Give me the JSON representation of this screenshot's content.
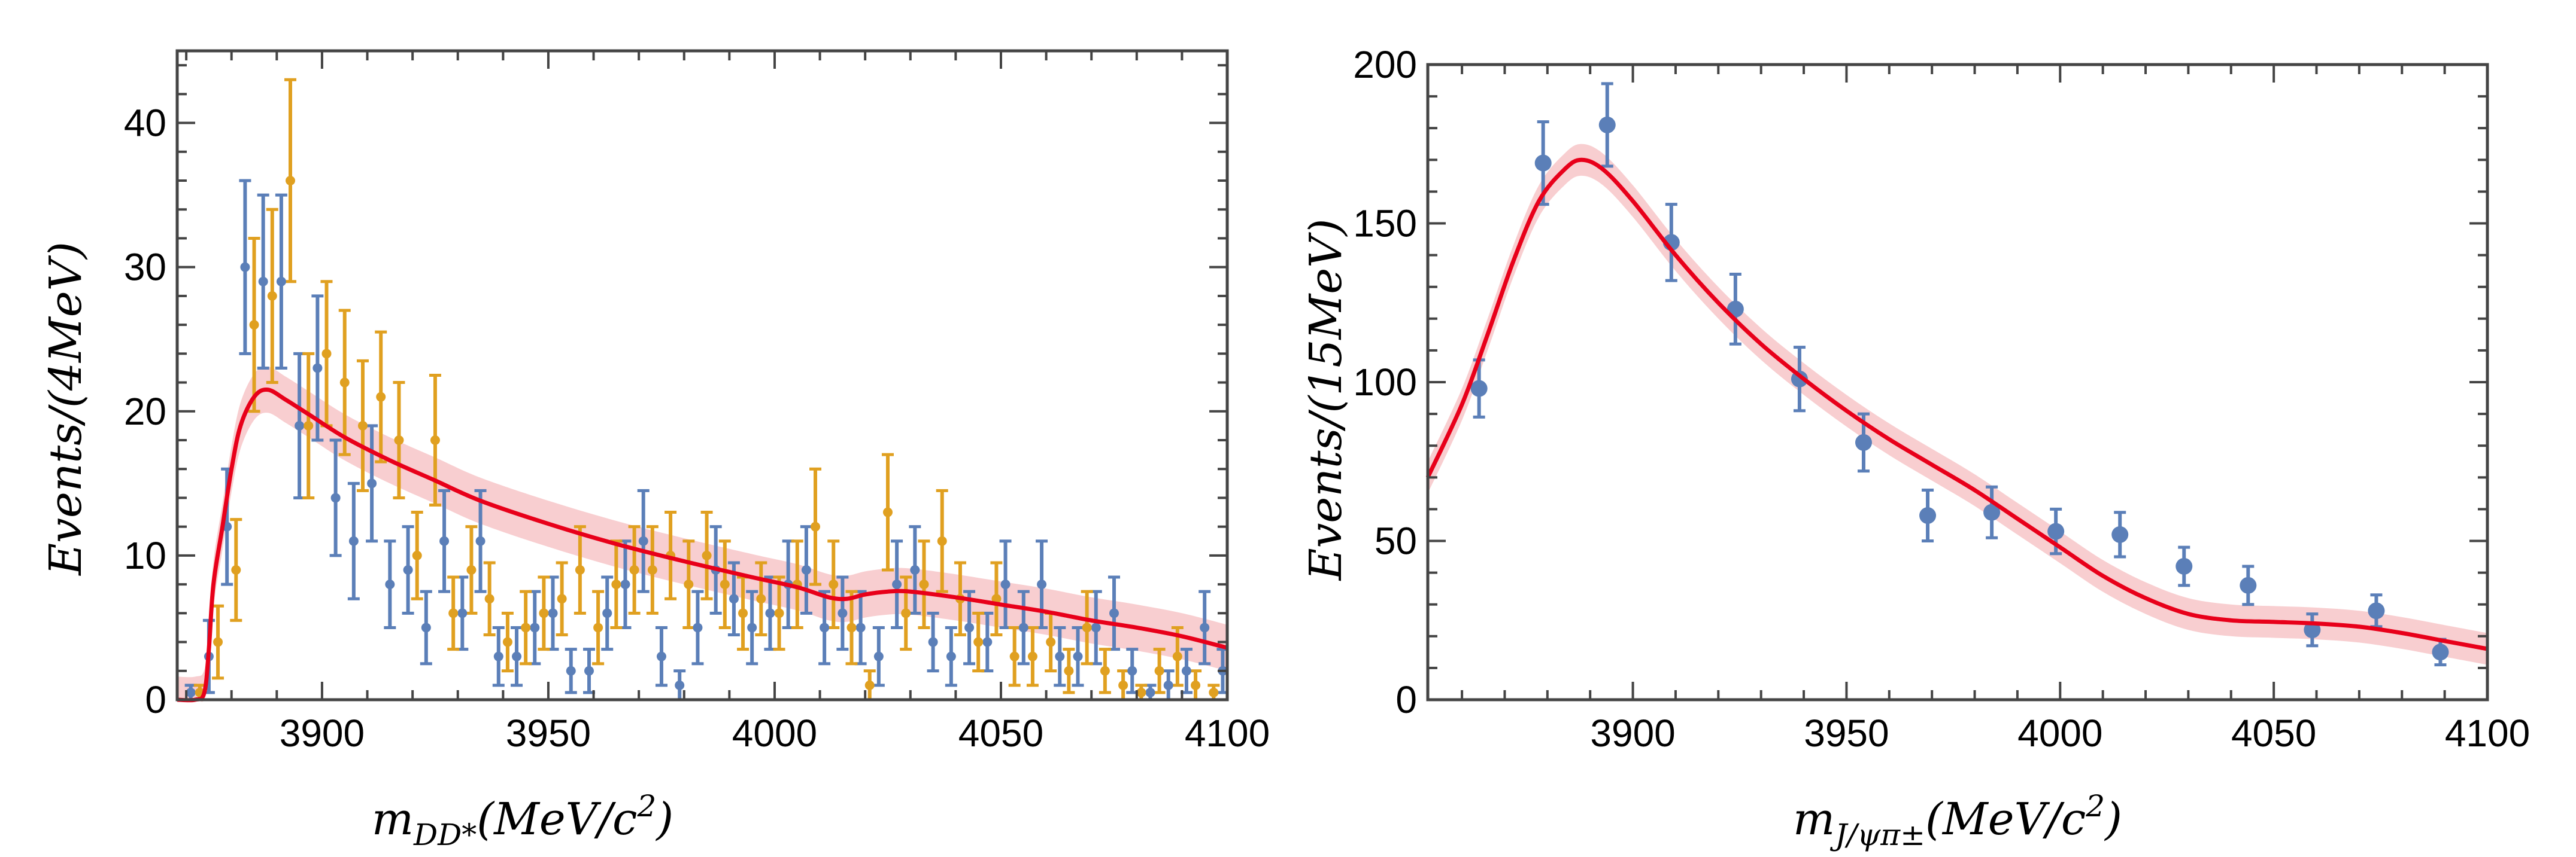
{
  "chart_data": [
    {
      "type": "scatter",
      "title": "",
      "xlabel": {
        "main": "m",
        "sub": "DD*",
        "rest": "(MeV/c",
        "sup": "2",
        "close": ")"
      },
      "ylabel": "Events/(4MeV)",
      "xlim": [
        3868,
        4100
      ],
      "ylim": [
        0,
        45
      ],
      "xticks": [
        3900,
        3950,
        4000,
        4050,
        4100
      ],
      "yticks": [
        0,
        10,
        20,
        30,
        40
      ],
      "grid": false,
      "legend": "none",
      "colors": {
        "series_a": "#5b7fb8",
        "series_b": "#e0a020",
        "fit": "#e8001a",
        "band": "#f7c5c8"
      },
      "series": [
        {
          "name": "data_blue",
          "color": "#5b7fb8",
          "points": [
            [
              3871,
              0.5,
              0.5
            ],
            [
              3875,
              3,
              2.5
            ],
            [
              3879,
              12,
              4
            ],
            [
              3883,
              30,
              6
            ],
            [
              3887,
              29,
              6
            ],
            [
              3891,
              29,
              6
            ],
            [
              3895,
              19,
              5
            ],
            [
              3899,
              23,
              5
            ],
            [
              3903,
              14,
              4
            ],
            [
              3907,
              11,
              4
            ],
            [
              3911,
              15,
              4
            ],
            [
              3915,
              8,
              3
            ],
            [
              3919,
              9,
              3
            ],
            [
              3923,
              5,
              2.5
            ],
            [
              3927,
              11,
              3.5
            ],
            [
              3931,
              6,
              2.5
            ],
            [
              3935,
              11,
              3.5
            ],
            [
              3939,
              3,
              2
            ],
            [
              3943,
              3,
              2
            ],
            [
              3947,
              5,
              2.5
            ],
            [
              3951,
              6,
              2.5
            ],
            [
              3955,
              2,
              1.5
            ],
            [
              3959,
              2,
              1.5
            ],
            [
              3963,
              6,
              2.5
            ],
            [
              3967,
              8,
              3
            ],
            [
              3971,
              11,
              3.5
            ],
            [
              3975,
              3,
              2
            ],
            [
              3979,
              1,
              1
            ],
            [
              3983,
              5,
              2.5
            ],
            [
              3987,
              9,
              3
            ],
            [
              3991,
              7,
              2.5
            ],
            [
              3995,
              5,
              2.5
            ],
            [
              3999,
              6,
              2.5
            ],
            [
              4003,
              8,
              3
            ],
            [
              4007,
              9,
              3
            ],
            [
              4011,
              5,
              2.5
            ],
            [
              4015,
              6,
              2.5
            ],
            [
              4019,
              5,
              2.5
            ],
            [
              4023,
              3,
              2
            ],
            [
              4027,
              8,
              3
            ],
            [
              4031,
              9,
              3
            ],
            [
              4035,
              4,
              2
            ],
            [
              4039,
              3,
              2
            ],
            [
              4043,
              5,
              2.5
            ],
            [
              4047,
              4,
              2
            ],
            [
              4051,
              8,
              3
            ],
            [
              4055,
              5,
              2.5
            ],
            [
              4059,
              8,
              3
            ],
            [
              4063,
              3,
              2
            ],
            [
              4067,
              3,
              2
            ],
            [
              4071,
              5,
              2.5
            ],
            [
              4075,
              6,
              2.5
            ],
            [
              4079,
              2,
              1.5
            ],
            [
              4083,
              0.5,
              0.5
            ],
            [
              4087,
              1,
              1
            ],
            [
              4091,
              2,
              1.5
            ],
            [
              4095,
              5,
              2.5
            ],
            [
              4099,
              2,
              1.5
            ]
          ]
        },
        {
          "name": "data_orange",
          "color": "#e0a020",
          "points": [
            [
              3873,
              0.5,
              0.5
            ],
            [
              3877,
              4,
              2.5
            ],
            [
              3881,
              9,
              3.5
            ],
            [
              3885,
              26,
              6
            ],
            [
              3889,
              28,
              6
            ],
            [
              3893,
              36,
              7
            ],
            [
              3897,
              19,
              5
            ],
            [
              3901,
              24,
              5
            ],
            [
              3905,
              22,
              5
            ],
            [
              3909,
              19,
              4.5
            ],
            [
              3913,
              21,
              4.5
            ],
            [
              3917,
              18,
              4
            ],
            [
              3921,
              10,
              3
            ],
            [
              3925,
              18,
              4.5
            ],
            [
              3929,
              6,
              2.5
            ],
            [
              3933,
              9,
              3
            ],
            [
              3937,
              7,
              2.5
            ],
            [
              3941,
              4,
              2
            ],
            [
              3945,
              5,
              2.5
            ],
            [
              3949,
              6,
              2.5
            ],
            [
              3953,
              7,
              2.5
            ],
            [
              3957,
              9,
              3
            ],
            [
              3961,
              5,
              2.5
            ],
            [
              3965,
              8,
              3
            ],
            [
              3969,
              9,
              3
            ],
            [
              3973,
              9,
              3
            ],
            [
              3977,
              10,
              3
            ],
            [
              3981,
              8,
              3
            ],
            [
              3985,
              10,
              3
            ],
            [
              3989,
              8,
              3
            ],
            [
              3993,
              6,
              2.5
            ],
            [
              3997,
              7,
              2.5
            ],
            [
              4001,
              6,
              2.5
            ],
            [
              4005,
              8,
              3
            ],
            [
              4009,
              12,
              4
            ],
            [
              4013,
              8,
              3
            ],
            [
              4017,
              5,
              2.5
            ],
            [
              4021,
              1,
              1
            ],
            [
              4025,
              13,
              4
            ],
            [
              4029,
              6,
              2.5
            ],
            [
              4033,
              8,
              3
            ],
            [
              4037,
              11,
              3.5
            ],
            [
              4041,
              7,
              2.5
            ],
            [
              4045,
              4,
              2
            ],
            [
              4049,
              7,
              2.5
            ],
            [
              4053,
              3,
              2
            ],
            [
              4057,
              3,
              2
            ],
            [
              4061,
              4,
              2
            ],
            [
              4065,
              2,
              1.5
            ],
            [
              4069,
              5,
              2.5
            ],
            [
              4073,
              2,
              1.5
            ],
            [
              4077,
              1,
              1
            ],
            [
              4081,
              0.5,
              0.5
            ],
            [
              4085,
              2,
              1.5
            ],
            [
              4089,
              3,
              2
            ],
            [
              4093,
              1,
              1
            ],
            [
              4097,
              0.5,
              0.5
            ]
          ]
        }
      ],
      "fit": {
        "name": "fit",
        "color": "#e8001a",
        "points": [
          [
            3868,
            0
          ],
          [
            3872,
            0
          ],
          [
            3874,
            0.5
          ],
          [
            3875,
            3.5
          ],
          [
            3876,
            8
          ],
          [
            3878,
            12
          ],
          [
            3880,
            16
          ],
          [
            3882,
            19
          ],
          [
            3885,
            21
          ],
          [
            3888,
            21.5
          ],
          [
            3892,
            20.8
          ],
          [
            3897,
            19.8
          ],
          [
            3905,
            18.2
          ],
          [
            3915,
            16.6
          ],
          [
            3925,
            15.2
          ],
          [
            3935,
            13.8
          ],
          [
            3950,
            12.2
          ],
          [
            3965,
            10.8
          ],
          [
            3980,
            9.6
          ],
          [
            3995,
            8.5
          ],
          [
            4005,
            7.8
          ],
          [
            4012,
            7.1
          ],
          [
            4016,
            7.0
          ],
          [
            4020,
            7.3
          ],
          [
            4025,
            7.5
          ],
          [
            4030,
            7.5
          ],
          [
            4040,
            7.1
          ],
          [
            4050,
            6.6
          ],
          [
            4060,
            6.1
          ],
          [
            4070,
            5.5
          ],
          [
            4080,
            5.0
          ],
          [
            4090,
            4.4
          ],
          [
            4100,
            3.6
          ]
        ],
        "band_halfwidth": 1.6
      }
    },
    {
      "type": "scatter",
      "title": "",
      "xlabel": {
        "main": "m",
        "sub": "J/ψπ±",
        "rest": "(MeV/c",
        "sup": "2",
        "close": ")"
      },
      "ylabel": "Events/(15MeV)",
      "xlim": [
        3852,
        4100
      ],
      "ylim": [
        0,
        200
      ],
      "xticks": [
        3900,
        3950,
        4000,
        4050,
        4100
      ],
      "yticks": [
        0,
        50,
        100,
        150,
        200
      ],
      "grid": false,
      "legend": "none",
      "colors": {
        "data": "#5b7fb8",
        "fit": "#e8001a",
        "band": "#f7c5c8"
      },
      "series": [
        {
          "name": "data",
          "color": "#5b7fb8",
          "points": [
            [
              3864,
              98,
              9
            ],
            [
              3879,
              169,
              13
            ],
            [
              3894,
              181,
              13
            ],
            [
              3909,
              144,
              12
            ],
            [
              3924,
              123,
              11
            ],
            [
              3939,
              101,
              10
            ],
            [
              3954,
              81,
              9
            ],
            [
              3969,
              58,
              8
            ],
            [
              3984,
              59,
              8
            ],
            [
              3999,
              53,
              7
            ],
            [
              4014,
              52,
              7
            ],
            [
              4029,
              42,
              6
            ],
            [
              4044,
              36,
              6
            ],
            [
              4059,
              22,
              5
            ],
            [
              4074,
              28,
              5
            ],
            [
              4089,
              15,
              4
            ]
          ]
        }
      ],
      "fit": {
        "name": "fit",
        "color": "#e8001a",
        "points": [
          [
            3852,
            70
          ],
          [
            3860,
            93
          ],
          [
            3866,
            115
          ],
          [
            3872,
            138
          ],
          [
            3878,
            157
          ],
          [
            3884,
            167
          ],
          [
            3888,
            170
          ],
          [
            3893,
            167
          ],
          [
            3900,
            157
          ],
          [
            3910,
            140
          ],
          [
            3920,
            125
          ],
          [
            3930,
            112
          ],
          [
            3940,
            101
          ],
          [
            3950,
            91
          ],
          [
            3960,
            82
          ],
          [
            3970,
            74
          ],
          [
            3980,
            66
          ],
          [
            3990,
            57
          ],
          [
            4000,
            48
          ],
          [
            4010,
            39
          ],
          [
            4020,
            32
          ],
          [
            4030,
            27
          ],
          [
            4040,
            25
          ],
          [
            4050,
            24.5
          ],
          [
            4060,
            24
          ],
          [
            4070,
            23
          ],
          [
            4080,
            21
          ],
          [
            4090,
            18.5
          ],
          [
            4100,
            16
          ]
        ],
        "band_halfwidth": 5
      }
    }
  ]
}
